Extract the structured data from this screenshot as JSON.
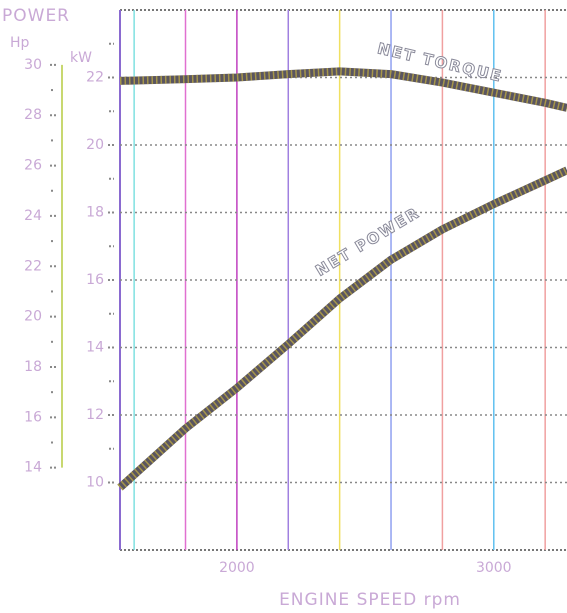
{
  "chart_data": {
    "type": "line",
    "title": "POWER",
    "y2_label": "Hp",
    "y_label": "kW",
    "x_label": "ENGINE SPEED rpm",
    "annotations": [
      "NET TORQUE",
      "NET POWER"
    ],
    "x": [
      1545,
      1800,
      2000,
      2200,
      2400,
      2600,
      2800,
      3000,
      3200,
      3285
    ],
    "series": [
      {
        "name": "NET TORQUE",
        "color": "#5a5560",
        "values": [
          21.9,
          21.95,
          22.0,
          22.1,
          22.18,
          22.1,
          21.85,
          21.55,
          21.25,
          21.1
        ]
      },
      {
        "name": "NET POWER",
        "color": "#5a5560",
        "values": [
          9.85,
          11.6,
          12.8,
          14.1,
          15.45,
          16.6,
          17.5,
          18.25,
          18.95,
          19.25
        ]
      }
    ],
    "xlim": [
      1545,
      3285
    ],
    "xticks": [
      2000,
      3000
    ],
    "xgrid": [
      1600,
      1800,
      2000,
      2200,
      2400,
      2600,
      2800,
      3000,
      3200
    ],
    "xgrid_colors": [
      "#7fe0e0",
      "#e070d0",
      "#c040c0",
      "#a080e0",
      "#f0e060",
      "#90a0f0",
      "#f0a0a0",
      "#60c0f0",
      "#f0a0a0"
    ],
    "ylim": [
      8,
      24
    ],
    "yticks": [
      10,
      12,
      14,
      16,
      18,
      20,
      22
    ],
    "yminorticks": [
      11,
      13,
      15,
      17,
      19,
      21,
      23
    ],
    "y2lim": [
      10.73,
      32.18
    ],
    "y2ticks": [
      14,
      16,
      18,
      20,
      22,
      24,
      26,
      28,
      30
    ],
    "y2minorticks": [
      15,
      17,
      19,
      21,
      23,
      25,
      27,
      29
    ],
    "grid": true
  }
}
